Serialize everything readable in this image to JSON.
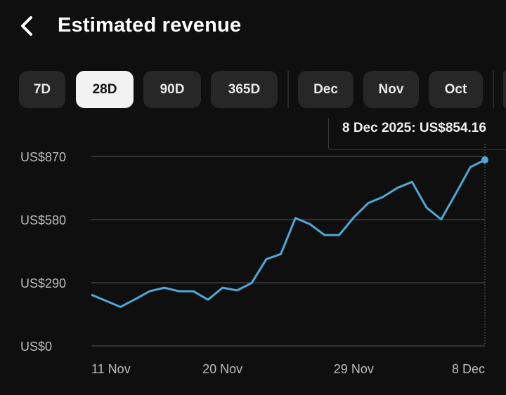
{
  "header": {
    "title": "Estimated revenue",
    "back_icon": "chevron-left-icon"
  },
  "ranges": [
    {
      "label": "7D",
      "selected": false
    },
    {
      "label": "28D",
      "selected": true
    },
    {
      "label": "90D",
      "selected": false
    },
    {
      "label": "365D",
      "selected": false
    }
  ],
  "months": [
    {
      "label": "Dec"
    },
    {
      "label": "Nov"
    },
    {
      "label": "Oct"
    }
  ],
  "tooltip": {
    "text": "8 Dec 2025: US$854.16"
  },
  "chart_data": {
    "type": "line",
    "color": "#4fa8d5",
    "x": [
      "11 Nov",
      "12 Nov",
      "13 Nov",
      "14 Nov",
      "15 Nov",
      "16 Nov",
      "17 Nov",
      "18 Nov",
      "19 Nov",
      "20 Nov",
      "21 Nov",
      "22 Nov",
      "23 Nov",
      "24 Nov",
      "25 Nov",
      "26 Nov",
      "27 Nov",
      "28 Nov",
      "29 Nov",
      "30 Nov",
      "1 Dec",
      "2 Dec",
      "3 Dec",
      "4 Dec",
      "5 Dec",
      "6 Dec",
      "7 Dec",
      "8 Dec"
    ],
    "values": [
      235,
      207,
      179,
      214,
      251,
      267,
      251,
      251,
      212,
      267,
      255,
      289,
      398,
      422,
      587,
      559,
      509,
      509,
      590,
      656,
      684,
      726,
      753,
      635,
      581,
      699,
      821,
      854.16
    ],
    "ylim": [
      0,
      870
    ],
    "yticks": [
      {
        "v": 870,
        "label": "US$870"
      },
      {
        "v": 580,
        "label": "US$580"
      },
      {
        "v": 290,
        "label": "US$290"
      },
      {
        "v": 0,
        "label": "US$0"
      }
    ],
    "xticks": [
      {
        "i": 0,
        "label": "11 Nov"
      },
      {
        "i": 9,
        "label": "20 Nov"
      },
      {
        "i": 18,
        "label": "29 Nov"
      },
      {
        "i": 27,
        "label": "8 Dec"
      }
    ],
    "grid": true,
    "highlight_index": 27
  }
}
